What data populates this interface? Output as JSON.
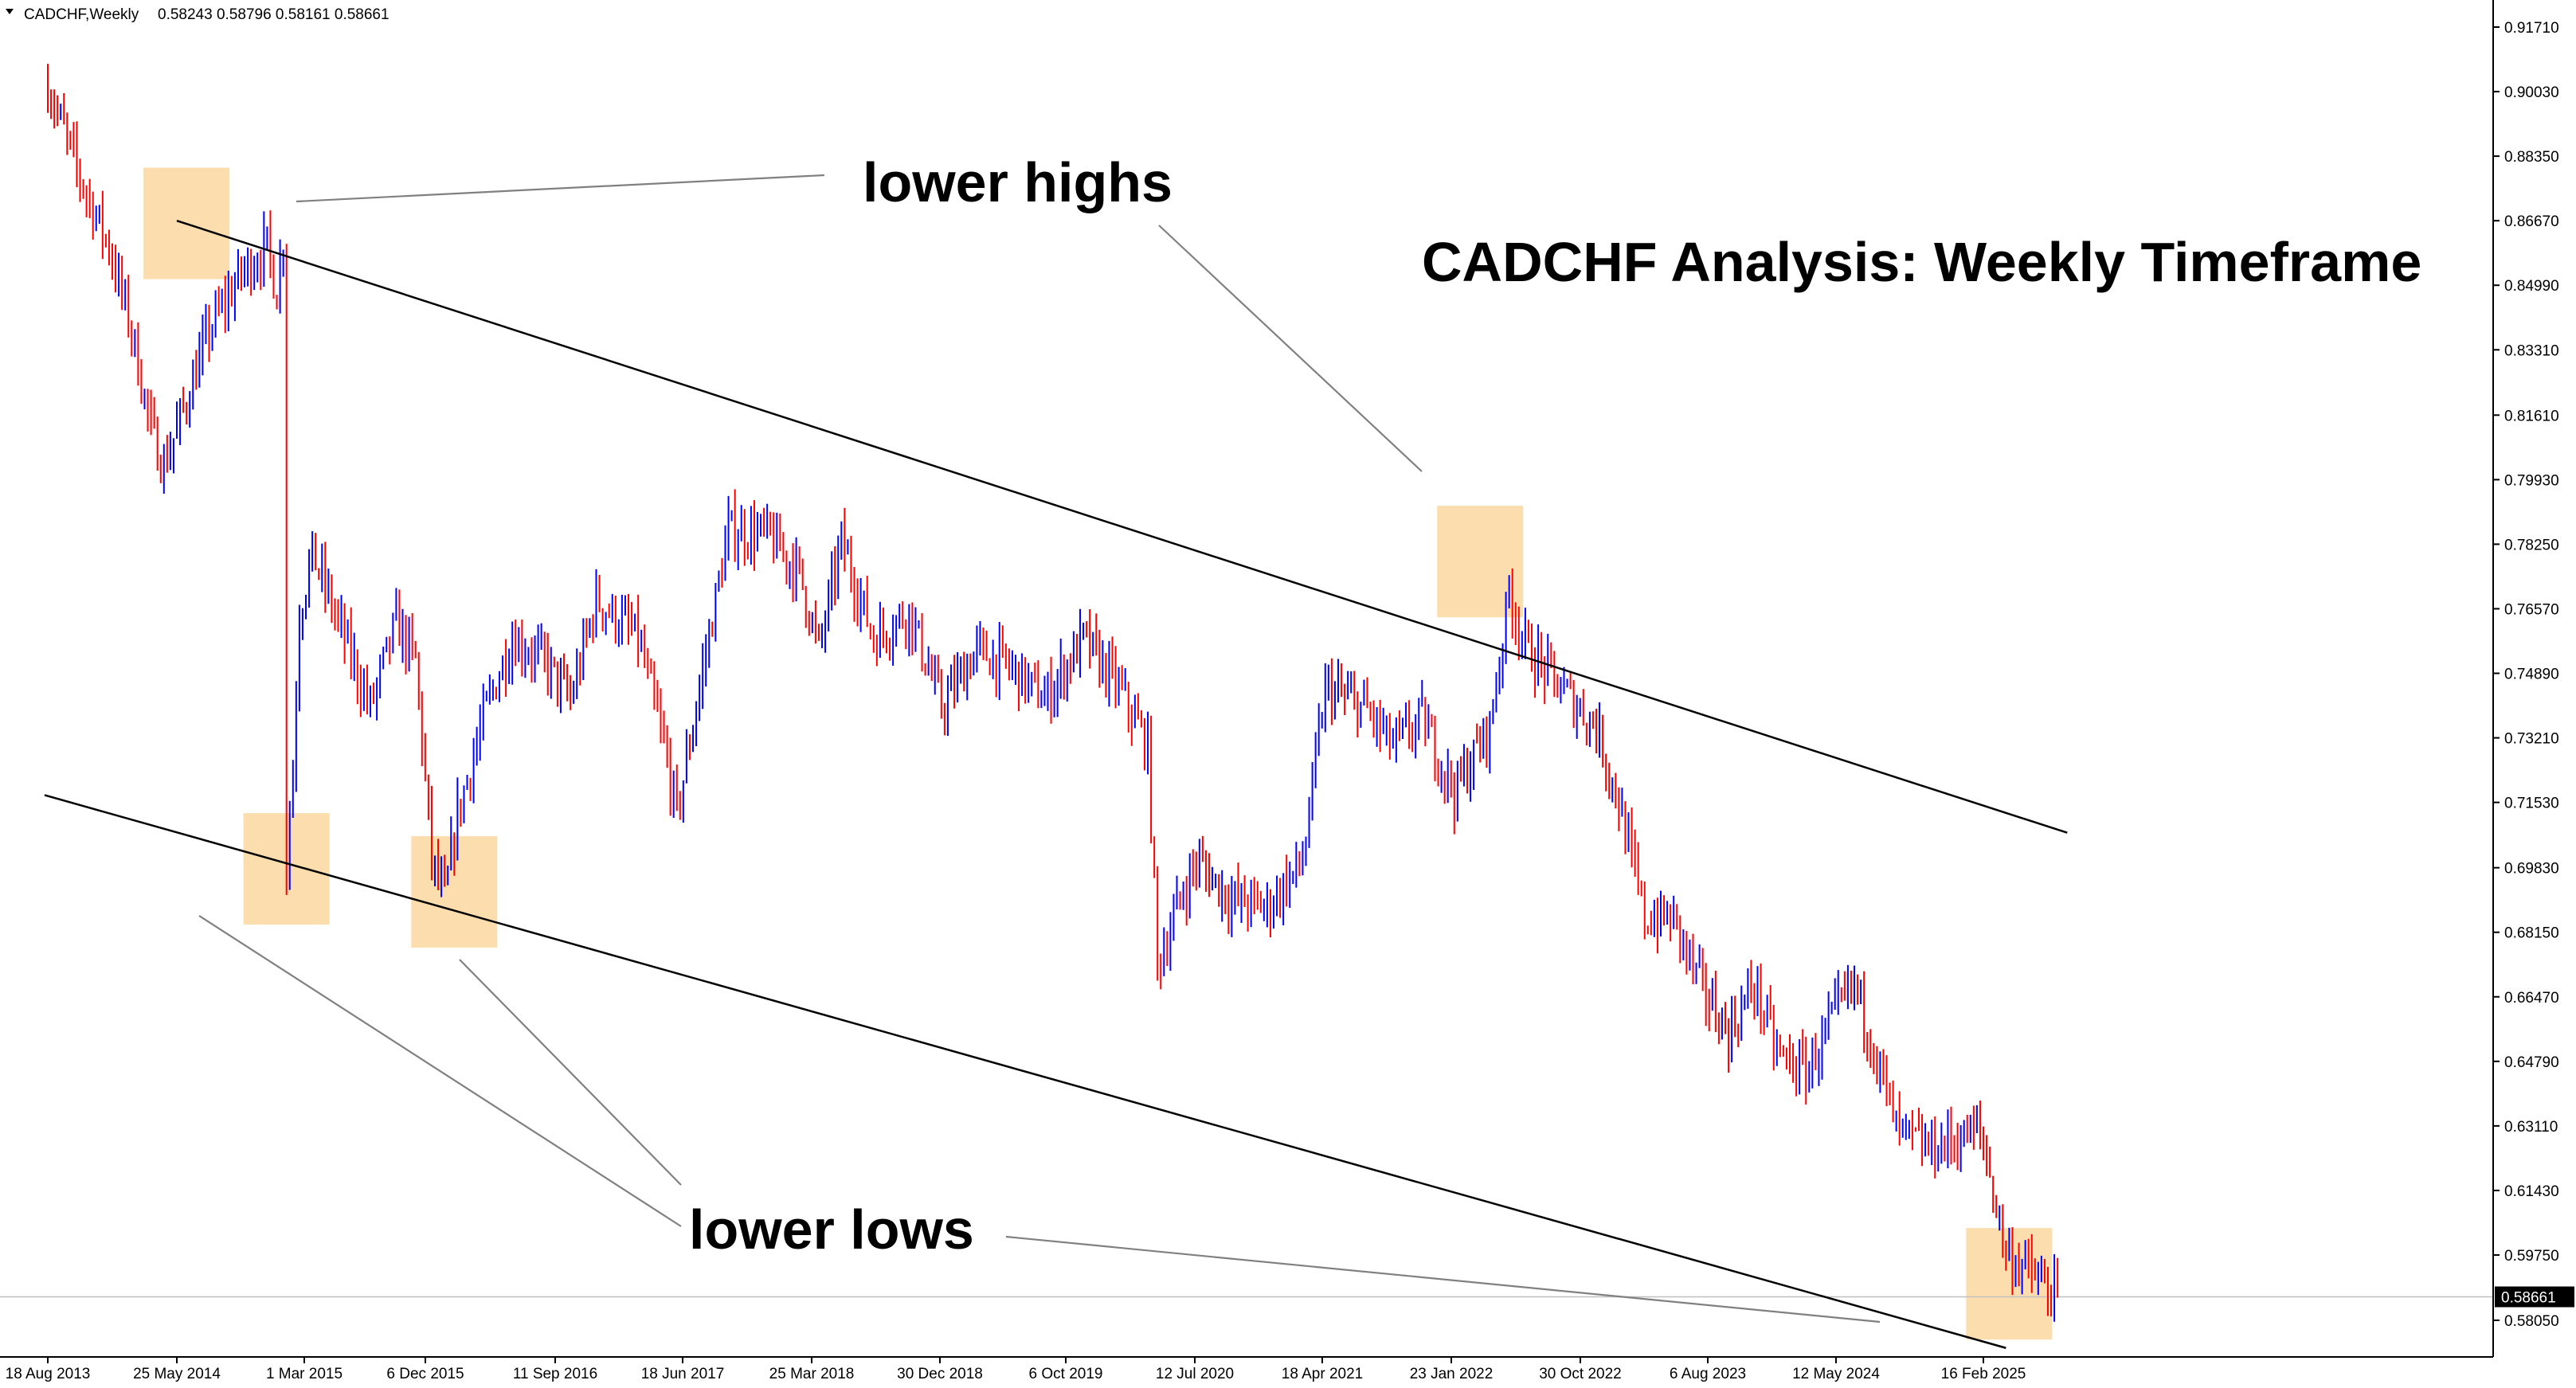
{
  "header": {
    "symbol": "CADCHF,Weekly",
    "ohlc": "0.58243 0.58796 0.58161 0.58661"
  },
  "colors": {
    "bull": "#0000ff",
    "bear": "#ff0000",
    "highlight": "#fcd7a0",
    "channel": "#000000",
    "pointer": "#808080",
    "current_price_line": "#c0c0c0"
  },
  "annotations": {
    "lower_highs": "lower highs",
    "lower_lows": "lower lows",
    "title": "CADCHF Analysis: Weekly Timeframe"
  },
  "price_axis": {
    "ticks": [
      "0.91710",
      "0.90030",
      "0.88350",
      "0.86670",
      "0.84990",
      "0.83310",
      "0.81610",
      "0.79930",
      "0.78250",
      "0.76570",
      "0.74890",
      "0.73210",
      "0.71530",
      "0.69830",
      "0.68150",
      "0.66470",
      "0.64790",
      "0.63110",
      "0.61430",
      "0.59750",
      "0.58050"
    ],
    "current_price": "0.58661"
  },
  "time_axis": {
    "ticks": [
      "18 Aug 2013",
      "25 May 2014",
      "1 Mar 2015",
      "6 Dec 2015",
      "11 Sep 2016",
      "18 Jun 2017",
      "25 Mar 2018",
      "30 Dec 2018",
      "6 Oct 2019",
      "12 Jul 2020",
      "18 Apr 2021",
      "23 Jan 2022",
      "30 Oct 2022",
      "6 Aug 2023",
      "12 May 2024",
      "16 Feb 2025"
    ]
  },
  "chart_data": {
    "type": "candlestick",
    "symbol": "CADCHF",
    "timeframe": "Weekly",
    "last_bar": {
      "open": 0.58243,
      "high": 0.58796,
      "low": 0.58161,
      "close": 0.58661
    },
    "ylim": [
      0.573,
      0.9205
    ],
    "xlim": [
      "2013-08-11",
      "2025-08-17"
    ],
    "grid": false,
    "price_path": [
      [
        "2013-08-18",
        0.902
      ],
      [
        "2013-10-20",
        0.88
      ],
      [
        "2013-12-29",
        0.86
      ],
      [
        "2014-02-16",
        0.838
      ],
      [
        "2014-03-30",
        0.812
      ],
      [
        "2014-04-27",
        0.803
      ],
      [
        "2014-06-01",
        0.815
      ],
      [
        "2014-08-03",
        0.838
      ],
      [
        "2014-10-12",
        0.853
      ],
      [
        "2014-12-07",
        0.86
      ],
      [
        "2014-12-28",
        0.848
      ],
      [
        "2015-01-11",
        0.862
      ],
      [
        "2015-01-18",
        0.7
      ],
      [
        "2015-02-01",
        0.725
      ],
      [
        "2015-02-15",
        0.765
      ],
      [
        "2015-03-15",
        0.78
      ],
      [
        "2015-05-17",
        0.76
      ],
      [
        "2015-07-19",
        0.74
      ],
      [
        "2015-09-13",
        0.762
      ],
      [
        "2015-10-25",
        0.752
      ],
      [
        "2015-11-29",
        0.7
      ],
      [
        "2015-12-27",
        0.69
      ],
      [
        "2016-01-24",
        0.712
      ],
      [
        "2016-03-27",
        0.74
      ],
      [
        "2016-05-22",
        0.758
      ],
      [
        "2016-07-31",
        0.752
      ],
      [
        "2016-09-25",
        0.742
      ],
      [
        "2016-11-20",
        0.768
      ],
      [
        "2017-02-19",
        0.758
      ],
      [
        "2017-04-16",
        0.73
      ],
      [
        "2017-05-14",
        0.712
      ],
      [
        "2017-07-09",
        0.75
      ],
      [
        "2017-09-03",
        0.786
      ],
      [
        "2017-11-26",
        0.785
      ],
      [
        "2018-02-04",
        0.775
      ],
      [
        "2018-03-18",
        0.755
      ],
      [
        "2018-05-06",
        0.783
      ],
      [
        "2018-07-15",
        0.758
      ],
      [
        "2018-09-30",
        0.765
      ],
      [
        "2018-12-09",
        0.74
      ],
      [
        "2019-02-24",
        0.755
      ],
      [
        "2019-05-12",
        0.75
      ],
      [
        "2019-07-21",
        0.742
      ],
      [
        "2019-10-13",
        0.758
      ],
      [
        "2019-12-29",
        0.745
      ],
      [
        "2020-03-01",
        0.73
      ],
      [
        "2020-03-22",
        0.673
      ],
      [
        "2020-05-10",
        0.69
      ],
      [
        "2020-06-14",
        0.7
      ],
      [
        "2020-08-30",
        0.69
      ],
      [
        "2020-11-15",
        0.688
      ],
      [
        "2021-01-31",
        0.7
      ],
      [
        "2021-03-21",
        0.745
      ],
      [
        "2021-06-13",
        0.74
      ],
      [
        "2021-08-15",
        0.73
      ],
      [
        "2021-10-17",
        0.737
      ],
      [
        "2021-12-26",
        0.718
      ],
      [
        "2022-03-13",
        0.735
      ],
      [
        "2022-04-24",
        0.77
      ],
      [
        "2022-05-29",
        0.756
      ],
      [
        "2022-08-14",
        0.745
      ],
      [
        "2022-10-30",
        0.735
      ],
      [
        "2022-12-18",
        0.715
      ],
      [
        "2023-02-12",
        0.685
      ],
      [
        "2023-04-16",
        0.685
      ],
      [
        "2023-06-11",
        0.668
      ],
      [
        "2023-08-13",
        0.655
      ],
      [
        "2023-10-08",
        0.668
      ],
      [
        "2023-11-26",
        0.65
      ],
      [
        "2024-01-28",
        0.645
      ],
      [
        "2024-03-31",
        0.66
      ],
      [
        "2024-05-12",
        0.668
      ],
      [
        "2024-06-23",
        0.652
      ],
      [
        "2024-08-11",
        0.63
      ],
      [
        "2024-10-20",
        0.625
      ],
      [
        "2024-12-29",
        0.628
      ],
      [
        "2025-02-09",
        0.63
      ],
      [
        "2025-04-06",
        0.598
      ],
      [
        "2025-05-11",
        0.595
      ],
      [
        "2025-06-22",
        0.59
      ],
      [
        "2025-07-27",
        0.586
      ]
    ],
    "channel_upper": [
      [
        "2014-05-25",
        0.8667
      ],
      [
        "2025-08-17",
        0.7074
      ]
    ],
    "channel_lower": [
      [
        "2013-08-11",
        0.7172
      ],
      [
        "2025-04-06",
        0.5733
      ]
    ],
    "highlighted_points": [
      {
        "label": "lower highs",
        "date": "2014-06-15",
        "price": 0.866
      },
      {
        "label": "lower highs",
        "date": "2022-02-20",
        "price": 0.778
      },
      {
        "label": "lower lows",
        "date": "2015-01-18",
        "price": 0.698
      },
      {
        "label": "lower lows",
        "date": "2016-01-17",
        "price": 0.692
      },
      {
        "label": "lower lows",
        "date": "2025-04-13",
        "price": 0.59
      }
    ],
    "annotations": [
      "lower highs",
      "lower lows",
      "CADCHF Analysis: Weekly Timeframe"
    ]
  }
}
